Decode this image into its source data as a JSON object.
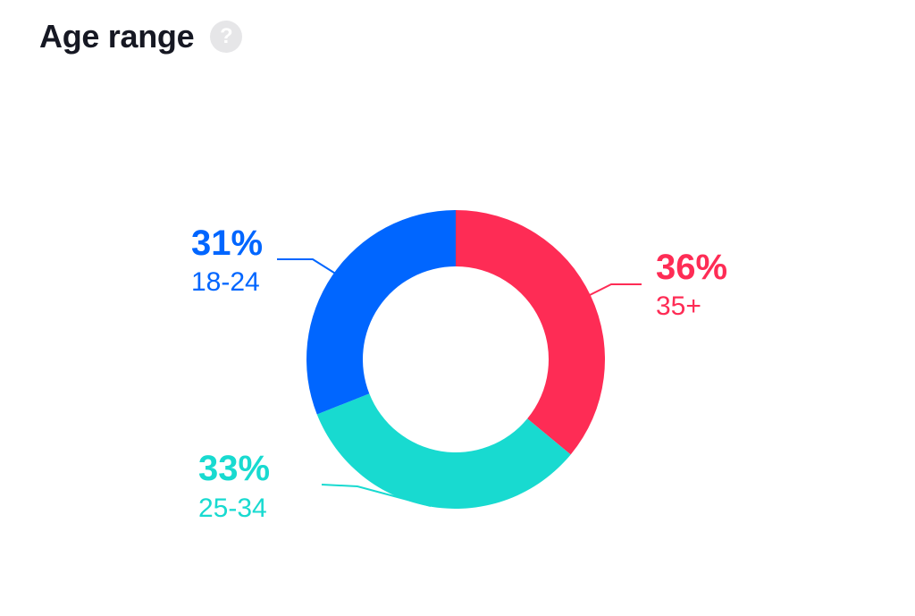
{
  "header": {
    "title": "Age range",
    "help_icon": "question-mark-icon"
  },
  "chart_data": {
    "type": "pie",
    "donut": true,
    "categories": [
      "35+",
      "25-34",
      "18-24"
    ],
    "values": [
      36,
      33,
      31
    ],
    "value_labels": [
      "36%",
      "33%",
      "31%"
    ],
    "colors": [
      "#fe2c55",
      "#18dad0",
      "#0066ff"
    ],
    "start": "12 o'clock",
    "direction": "clockwise"
  }
}
